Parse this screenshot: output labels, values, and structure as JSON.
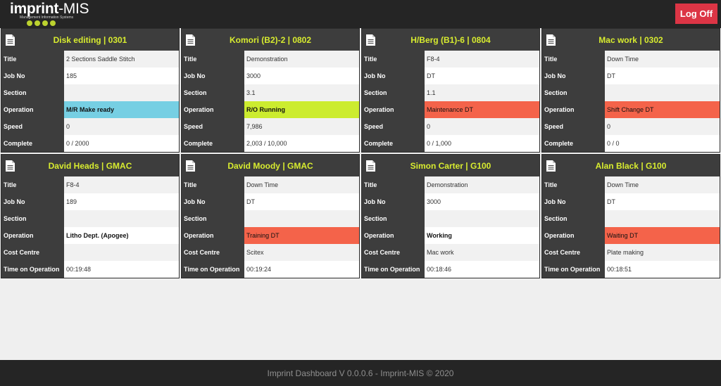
{
  "header": {
    "logo_main": "imprint",
    "logo_suffix": "-MIS",
    "logo_tagline": "Management Information Systems",
    "logoff_label": "Log Off"
  },
  "colors": {
    "topbar": "#252525",
    "card_header": "#3d3d3d",
    "title_accent": "#d8ec2f",
    "logoff": "#dc3545",
    "status_cyan": "#76cfe3",
    "status_lime": "#ccec2f",
    "status_red": "#f4634a"
  },
  "cards": [
    {
      "title": "Disk editing | 0301",
      "rows": [
        {
          "label": "Title",
          "value": "2 Sections Saddle Stitch"
        },
        {
          "label": "Job No",
          "value": "185"
        },
        {
          "label": "Section",
          "value": ""
        },
        {
          "label": "Operation",
          "value": "M/R Make ready"
        },
        {
          "label": "Speed",
          "value": "0"
        },
        {
          "label": "Complete",
          "value": "0 / 2000"
        }
      ]
    },
    {
      "title": "Komori (B2)-2 | 0802",
      "rows": [
        {
          "label": "Title",
          "value": "Demonstration"
        },
        {
          "label": "Job No",
          "value": "3000"
        },
        {
          "label": "Section",
          "value": "3.1"
        },
        {
          "label": "Operation",
          "value": "R/O Running"
        },
        {
          "label": "Speed",
          "value": "7,986"
        },
        {
          "label": "Complete",
          "value": "2,003 / 10,000"
        }
      ]
    },
    {
      "title": "H/Berg (B1)-6 | 0804",
      "rows": [
        {
          "label": "Title",
          "value": "F8-4"
        },
        {
          "label": "Job No",
          "value": "DT"
        },
        {
          "label": "Section",
          "value": "1.1"
        },
        {
          "label": "Operation",
          "value": "Maintenance DT"
        },
        {
          "label": "Speed",
          "value": "0"
        },
        {
          "label": "Complete",
          "value": "0 / 1,000"
        }
      ]
    },
    {
      "title": "Mac work | 0302",
      "rows": [
        {
          "label": "Title",
          "value": "Down Time"
        },
        {
          "label": "Job No",
          "value": "DT"
        },
        {
          "label": "Section",
          "value": ""
        },
        {
          "label": "Operation",
          "value": "Shift Change DT"
        },
        {
          "label": "Speed",
          "value": "0"
        },
        {
          "label": "Complete",
          "value": "0 / 0"
        }
      ]
    },
    {
      "title": "David Heads | GMAC",
      "rows": [
        {
          "label": "Title",
          "value": "F8-4"
        },
        {
          "label": "Job No",
          "value": "189"
        },
        {
          "label": "Section",
          "value": ""
        },
        {
          "label": "Operation",
          "value": "Litho Dept. (Apogee)"
        },
        {
          "label": "Cost Centre",
          "value": ""
        },
        {
          "label": "Time on Operation",
          "value": "00:19:48"
        }
      ]
    },
    {
      "title": "David Moody | GMAC",
      "rows": [
        {
          "label": "Title",
          "value": "Down Time"
        },
        {
          "label": "Job No",
          "value": "DT"
        },
        {
          "label": "Section",
          "value": ""
        },
        {
          "label": "Operation",
          "value": "Training DT"
        },
        {
          "label": "Cost Centre",
          "value": "Scitex"
        },
        {
          "label": "Time on Operation",
          "value": "00:19:24"
        }
      ]
    },
    {
      "title": "Simon Carter | G100",
      "rows": [
        {
          "label": "Title",
          "value": "Demonstration"
        },
        {
          "label": "Job No",
          "value": "3000"
        },
        {
          "label": "Section",
          "value": ""
        },
        {
          "label": "Operation",
          "value": "Working"
        },
        {
          "label": "Cost Centre",
          "value": "Mac work"
        },
        {
          "label": "Time on Operation",
          "value": "00:18:46"
        }
      ]
    },
    {
      "title": "Alan Black | G100",
      "rows": [
        {
          "label": "Title",
          "value": "Down Time"
        },
        {
          "label": "Job No",
          "value": "DT"
        },
        {
          "label": "Section",
          "value": ""
        },
        {
          "label": "Operation",
          "value": "Waiting DT"
        },
        {
          "label": "Cost Centre",
          "value": "Plate making"
        },
        {
          "label": "Time on Operation",
          "value": "00:18:51"
        }
      ]
    }
  ],
  "footer": {
    "text": "Imprint Dashboard V 0.0.0.6 - Imprint-MIS © 2020"
  }
}
